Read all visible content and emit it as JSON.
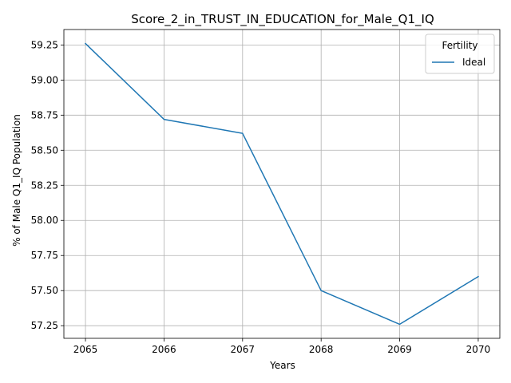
{
  "chart_data": {
    "type": "line",
    "title": "Score_2_in_TRUST_IN_EDUCATION_for_Male_Q1_IQ",
    "xlabel": "Years",
    "ylabel": "% of Male Q1_IQ Population",
    "x": [
      2065,
      2066,
      2067,
      2068,
      2069,
      2070
    ],
    "series": [
      {
        "name": "Ideal",
        "color": "#1f77b4",
        "values": [
          59.26,
          58.72,
          58.62,
          57.5,
          57.26,
          57.6
        ]
      }
    ],
    "xlim": [
      2064.725,
      2070.275
    ],
    "ylim": [
      57.16,
      59.36
    ],
    "xticks": [
      "2065",
      "2066",
      "2067",
      "2068",
      "2069",
      "2070"
    ],
    "yticks": [
      "57.25",
      "57.50",
      "57.75",
      "58.00",
      "58.25",
      "58.50",
      "58.75",
      "59.00",
      "59.25"
    ],
    "grid": true,
    "legend": {
      "title": "Fertility",
      "placement": "upper right"
    }
  }
}
